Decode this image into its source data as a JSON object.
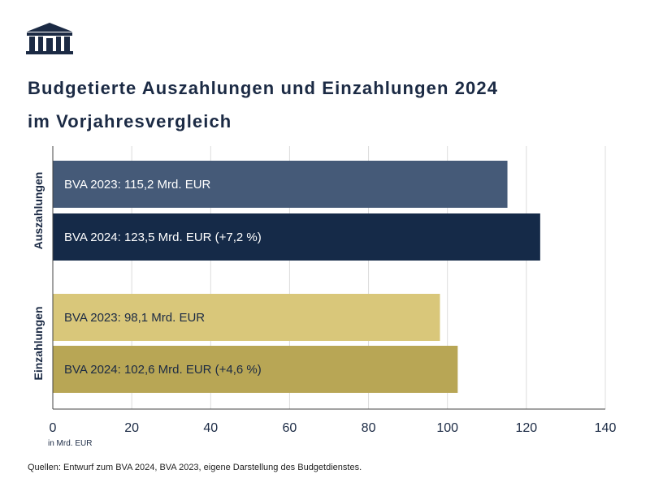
{
  "header": {
    "logo": "parliament-building-icon",
    "title_line1": "Budgetierte Auszahlungen und Einzahlungen 2024",
    "title_line2": "im Vorjahresvergleich"
  },
  "chart_data": {
    "type": "bar",
    "orientation": "horizontal",
    "groups": [
      {
        "label": "Auszahlungen",
        "bars": [
          {
            "value": 115.2,
            "label": "BVA 2023: 115,2 Mrd. EUR",
            "color": "#455a78",
            "text_color": "#ffffff"
          },
          {
            "value": 123.5,
            "label": "BVA 2024: 123,5 Mrd. EUR (+7,2 %)",
            "color": "#152a48",
            "text_color": "#ffffff"
          }
        ]
      },
      {
        "label": "Einzahlungen",
        "bars": [
          {
            "value": 98.1,
            "label": "BVA 2023: 98,1 Mrd. EUR",
            "color": "#d9c77a",
            "text_color": "#1b2a44"
          },
          {
            "value": 102.6,
            "label": "BVA 2024: 102,6 Mrd. EUR (+4,6 %)",
            "color": "#b8a655",
            "text_color": "#1b2a44"
          }
        ]
      }
    ],
    "xlim": [
      0,
      140
    ],
    "xticks": [
      "0",
      "20",
      "40",
      "60",
      "80",
      "100",
      "120",
      "140"
    ],
    "xtick_values": [
      0,
      20,
      40,
      60,
      80,
      100,
      120,
      140
    ],
    "xlabel": "in Mrd. EUR",
    "grid": "vertical"
  },
  "footer": {
    "source": "Quellen: Entwurf zum BVA 2024, BVA 2023, eigene Darstellung des Budgetdienstes."
  }
}
